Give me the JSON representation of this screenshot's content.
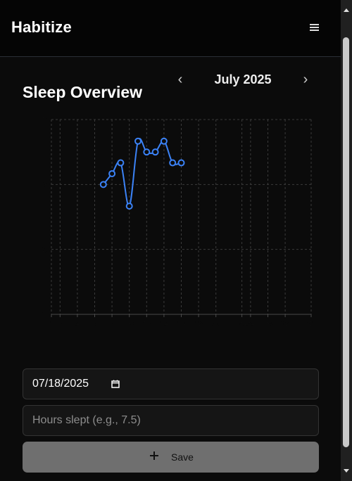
{
  "app": {
    "title": "Habitize"
  },
  "header": {
    "menu_icon": "hamburger-icon"
  },
  "overview": {
    "title": "Sleep Overview",
    "month_label": "July 2025",
    "prev_icon": "chevron-left-icon",
    "next_icon": "chevron-right-icon",
    "prev_glyph": "‹",
    "next_glyph": "›"
  },
  "chart_data": {
    "type": "line",
    "title": "",
    "xlabel": "",
    "ylabel": "",
    "xlim": [
      1,
      31
    ],
    "ylim": [
      0,
      9
    ],
    "grid": true,
    "x_ticks": [
      1,
      2,
      4,
      6,
      8,
      10,
      12,
      14,
      16,
      18,
      20,
      23,
      24,
      26,
      28,
      31
    ],
    "y_ticks": [
      0,
      3,
      6,
      9
    ],
    "series": [
      {
        "color": "#3b82f6",
        "x": [
          7,
          8,
          9,
          10,
          11,
          12,
          13,
          14,
          15,
          16
        ],
        "y": [
          6,
          6.5,
          7,
          5,
          8,
          7.5,
          7.5,
          8,
          7,
          7
        ]
      }
    ]
  },
  "form": {
    "date_value": "07/18/2025",
    "date_icon": "calendar-icon",
    "hours_placeholder": "Hours slept (e.g., 7.5)",
    "hours_value": "",
    "save_label": "Save",
    "save_icon": "plus-icon"
  },
  "colors": {
    "accent": "#3b82f6",
    "background": "#0b0b0b",
    "button": "#6f6f6f"
  }
}
